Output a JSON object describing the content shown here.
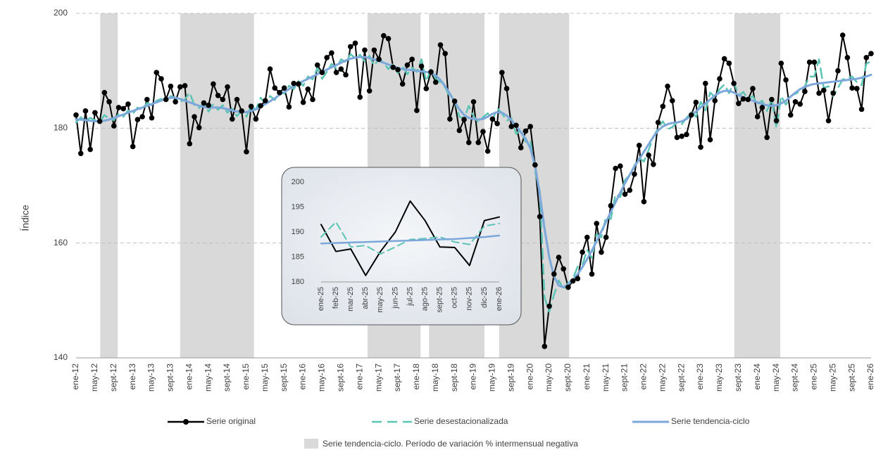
{
  "chart_data": [
    {
      "type": "line",
      "y_label": "Índice",
      "ylim": [
        140,
        200
      ],
      "yticks": [
        140,
        160,
        180,
        200
      ],
      "grid": true,
      "legend": "bottom",
      "categories": [
        "ene-12",
        null,
        null,
        null,
        "may-12",
        null,
        null,
        null,
        "sept-12",
        null,
        null,
        null,
        "ene-13",
        null,
        null,
        null,
        "may-13",
        null,
        null,
        null,
        "sept-13",
        null,
        null,
        null,
        "ene-14",
        null,
        null,
        null,
        "may-14",
        null,
        null,
        null,
        "sept-14",
        null,
        null,
        null,
        "ene-15",
        null,
        null,
        null,
        "may-15",
        null,
        null,
        null,
        "sept-15",
        null,
        null,
        null,
        "ene-16",
        null,
        null,
        null,
        "may-16",
        null,
        null,
        null,
        "sept-16",
        null,
        null,
        null,
        "ene-17",
        null,
        null,
        null,
        "may-17",
        null,
        null,
        null,
        "sept-17",
        null,
        null,
        null,
        "ene-18",
        null,
        null,
        null,
        "may-18",
        null,
        null,
        null,
        "sept-18",
        null,
        null,
        null,
        "ene-19",
        null,
        null,
        null,
        "may-19",
        null,
        null,
        null,
        "sept-19",
        null,
        null,
        null,
        "ene-20",
        null,
        null,
        null,
        "may-20",
        null,
        null,
        null,
        "sept-20",
        null,
        null,
        null,
        "ene-21",
        null,
        null,
        null,
        "may-21",
        null,
        null,
        null,
        "sept-21",
        null,
        null,
        null,
        "ene-22",
        null,
        null,
        null,
        "may-22",
        null,
        null,
        null,
        "sept-22",
        null,
        null,
        null,
        "ene-23",
        null,
        null,
        null,
        "may-23",
        null,
        null,
        null,
        "sept-23",
        null,
        null,
        null,
        "ene-24",
        null,
        null,
        null,
        "may-24",
        null,
        null,
        null,
        "sept-24",
        null,
        null,
        null,
        "ene-25",
        null,
        null,
        null,
        "may-25",
        null,
        null,
        null,
        "sept-25",
        null,
        null,
        null,
        "ene-26"
      ],
      "shaded_periods": [
        {
          "start": 5.1,
          "end": 8.8
        },
        {
          "start": 22.0,
          "end": 37.6
        },
        {
          "start": 61.6,
          "end": 72.8
        },
        {
          "start": 74.6,
          "end": 86.3
        },
        {
          "start": 89.4,
          "end": 104.2
        },
        {
          "start": 139.1,
          "end": 148.8
        }
      ],
      "shade_label": "Serie tendencia-ciclo. Período de variación % intermensual negativa",
      "shade_color": "#d9d9d9",
      "series": [
        {
          "name": "Serie original",
          "color": "#000000",
          "marker": "circle",
          "dash": "solid",
          "values": [
            182.3,
            175.6,
            183.0,
            176.3,
            182.7,
            181.2,
            186.2,
            184.6,
            180.4,
            183.6,
            183.4,
            184.2,
            176.8,
            181.5,
            182.0,
            185.0,
            181.8,
            189.7,
            188.6,
            185.0,
            187.3,
            184.6,
            187.2,
            187.4,
            177.3,
            182.0,
            180.1,
            184.4,
            184.0,
            187.7,
            185.7,
            185.0,
            187.2,
            181.6,
            185.0,
            183.0,
            175.9,
            183.8,
            181.6,
            183.9,
            184.8,
            190.3,
            187.0,
            186.2,
            187.0,
            183.7,
            187.8,
            187.7,
            184.5,
            186.8,
            185.0,
            191.0,
            189.7,
            192.3,
            193.1,
            189.7,
            190.3,
            189.3,
            194.2,
            194.8,
            185.4,
            193.6,
            186.5,
            193.6,
            192.0,
            196.1,
            195.6,
            190.6,
            190.2,
            187.7,
            191.0,
            192.0,
            183.1,
            190.8,
            186.9,
            189.8,
            188.0,
            194.5,
            193.0,
            181.6,
            184.7,
            179.6,
            181.5,
            177.5,
            184.6,
            177.5,
            179.4,
            176.0,
            181.6,
            180.8,
            189.7,
            186.9,
            180.3,
            180.5,
            176.6,
            179.5,
            180.3,
            173.6,
            164.6,
            142.0,
            149.0,
            154.6,
            157.5,
            155.5,
            152.3,
            153.4,
            153.8,
            158.4,
            161.0,
            154.6,
            163.4,
            158.4,
            161.0,
            166.5,
            173.0,
            173.4,
            168.5,
            169.2,
            172.0,
            177.0,
            167.2,
            175.3,
            173.7,
            181.0,
            183.8,
            187.3,
            184.8,
            178.4,
            178.6,
            178.9,
            182.3,
            184.5,
            176.7,
            187.8,
            178.0,
            184.8,
            188.6,
            192.1,
            191.3,
            187.8,
            184.3,
            185.1,
            185.0,
            186.9,
            182.0,
            183.6,
            178.4,
            185.0,
            181.3,
            191.3,
            188.4,
            182.3,
            184.6,
            184.2,
            186.4,
            191.5,
            191.5,
            186.1,
            186.6,
            181.3,
            186.1,
            190.0,
            196.2,
            192.3,
            187.0,
            186.9,
            183.3,
            192.3,
            193.0
          ]
        },
        {
          "name": "Serie desestacionalizada",
          "color": "#5cc4b5",
          "marker": "none",
          "dash": "dashed",
          "values": [
            181.0,
            181.9,
            181.3,
            181.8,
            181.4,
            181.0,
            182.3,
            181.6,
            181.4,
            182.5,
            182.0,
            183.1,
            182.5,
            183.6,
            183.2,
            184.4,
            184.0,
            184.8,
            185.1,
            184.7,
            185.6,
            185.3,
            184.6,
            185.0,
            186.2,
            184.0,
            183.5,
            184.4,
            182.9,
            184.2,
            183.2,
            184.0,
            182.7,
            183.4,
            182.1,
            183.0,
            182.0,
            183.9,
            183.2,
            185.3,
            184.4,
            185.6,
            184.9,
            186.5,
            186.0,
            187.4,
            186.8,
            188.2,
            187.4,
            189.0,
            188.5,
            190.5,
            188.6,
            189.8,
            191.2,
            190.4,
            192.0,
            191.5,
            192.9,
            192.2,
            192.8,
            191.6,
            192.6,
            190.9,
            192.1,
            191.4,
            190.3,
            191.2,
            189.6,
            190.8,
            189.4,
            190.6,
            189.8,
            192.0,
            188.2,
            190.2,
            188.6,
            188.0,
            187.1,
            185.5,
            184.9,
            182.0,
            181.7,
            183.9,
            182.1,
            181.0,
            181.9,
            182.6,
            181.4,
            183.5,
            182.6,
            181.3,
            181.7,
            179.0,
            179.8,
            177.6,
            177.8,
            172.5,
            169.0,
            150.5,
            148.0,
            151.0,
            153.5,
            152.0,
            153.0,
            153.8,
            155.9,
            156.2,
            158.8,
            157.4,
            161.5,
            161.0,
            164.6,
            164.2,
            168.5,
            168.0,
            171.0,
            171.8,
            173.5,
            174.8,
            174.2,
            176.2,
            178.5,
            180.0,
            181.2,
            179.8,
            180.2,
            181.0,
            180.7,
            181.8,
            182.8,
            182.0,
            184.6,
            183.1,
            186.2,
            185.4,
            186.8,
            187.6,
            186.1,
            188.0,
            185.7,
            186.3,
            185.0,
            185.6,
            184.2,
            184.8,
            183.0,
            185.0,
            180.0,
            185.6,
            184.1,
            185.6,
            186.0,
            186.4,
            187.3,
            189.0,
            189.0,
            192.0,
            187.0,
            187.3,
            185.6,
            187.0,
            188.5,
            188.7,
            189.0,
            188.0,
            187.5,
            191.2,
            191.7
          ]
        },
        {
          "name": "Serie tendencia-ciclo",
          "color": "#7ba7da",
          "marker": "none",
          "dash": "solid",
          "values": [
            181.5,
            181.5,
            181.4,
            181.3,
            181.2,
            181.2,
            181.3,
            181.5,
            181.8,
            182.1,
            182.4,
            182.7,
            183.0,
            183.3,
            183.6,
            183.9,
            184.2,
            184.5,
            184.8,
            185.1,
            185.3,
            185.3,
            185.1,
            184.8,
            184.5,
            184.2,
            183.9,
            183.7,
            183.6,
            183.6,
            183.6,
            183.5,
            183.3,
            183.1,
            182.9,
            182.8,
            182.8,
            183.0,
            183.3,
            183.7,
            184.2,
            184.7,
            185.2,
            185.8,
            186.3,
            186.8,
            187.3,
            187.8,
            188.2,
            188.6,
            189.0,
            189.4,
            189.8,
            190.2,
            190.6,
            191.0,
            191.4,
            191.8,
            192.1,
            192.3,
            192.4,
            192.4,
            192.2,
            192.0,
            191.7,
            191.4,
            191.1,
            190.8,
            190.5,
            190.3,
            190.2,
            190.1,
            190.0,
            189.9,
            189.8,
            189.6,
            189.2,
            188.4,
            187.3,
            186.0,
            184.6,
            183.3,
            182.3,
            181.8,
            181.6,
            181.5,
            181.6,
            182.0,
            182.5,
            182.8,
            182.7,
            182.2,
            181.4,
            180.4,
            179.3,
            178.2,
            176.5,
            173.5,
            168.5,
            162.5,
            157.5,
            154.2,
            152.6,
            152.3,
            152.8,
            153.6,
            154.6,
            155.8,
            157.2,
            158.7,
            160.3,
            162.0,
            163.7,
            165.4,
            167.1,
            168.8,
            170.4,
            171.9,
            173.3,
            174.6,
            175.9,
            177.2,
            178.5,
            179.6,
            180.3,
            180.7,
            180.9,
            181.0,
            181.2,
            181.6,
            182.2,
            182.9,
            183.6,
            184.3,
            185.0,
            185.7,
            186.2,
            186.5,
            186.5,
            186.2,
            185.8,
            185.4,
            185.1,
            184.8,
            184.5,
            184.2,
            184.0,
            183.9,
            184.0,
            184.3,
            184.8,
            185.5,
            186.2,
            186.8,
            187.2,
            187.5,
            187.7,
            187.8,
            187.9,
            188.0,
            188.1,
            188.2,
            188.3,
            188.4,
            188.5,
            188.6,
            188.8,
            189.0,
            189.3
          ]
        }
      ]
    },
    {
      "type": "line",
      "ylim": [
        180,
        200
      ],
      "yticks": [
        180,
        185,
        190,
        195,
        200
      ],
      "grid": false,
      "categories": [
        "ene-25",
        "feb-25",
        "mar-25",
        "abr-25",
        "may-25",
        "jun-25",
        "jul-25",
        "ago-25",
        "sept-25",
        "oct-25",
        "nov-25",
        "dic-25",
        "ene-26"
      ],
      "series": [
        {
          "color": "#000000",
          "marker": "none",
          "dash": "solid",
          "values": [
            191.5,
            186.1,
            186.6,
            181.3,
            186.1,
            190.0,
            196.2,
            192.3,
            187.0,
            186.9,
            183.3,
            192.3,
            193.0
          ]
        },
        {
          "color": "#5cc4b5",
          "marker": "none",
          "dash": "dashed",
          "values": [
            189.0,
            192.0,
            187.0,
            187.3,
            185.6,
            187.0,
            188.5,
            188.7,
            189.0,
            188.0,
            187.5,
            191.2,
            191.7
          ]
        },
        {
          "color": "#7ba7da",
          "marker": "none",
          "dash": "solid",
          "values": [
            187.7,
            187.8,
            187.9,
            188.0,
            188.1,
            188.2,
            188.3,
            188.4,
            188.5,
            188.6,
            188.8,
            189.0,
            189.3
          ]
        }
      ]
    }
  ]
}
